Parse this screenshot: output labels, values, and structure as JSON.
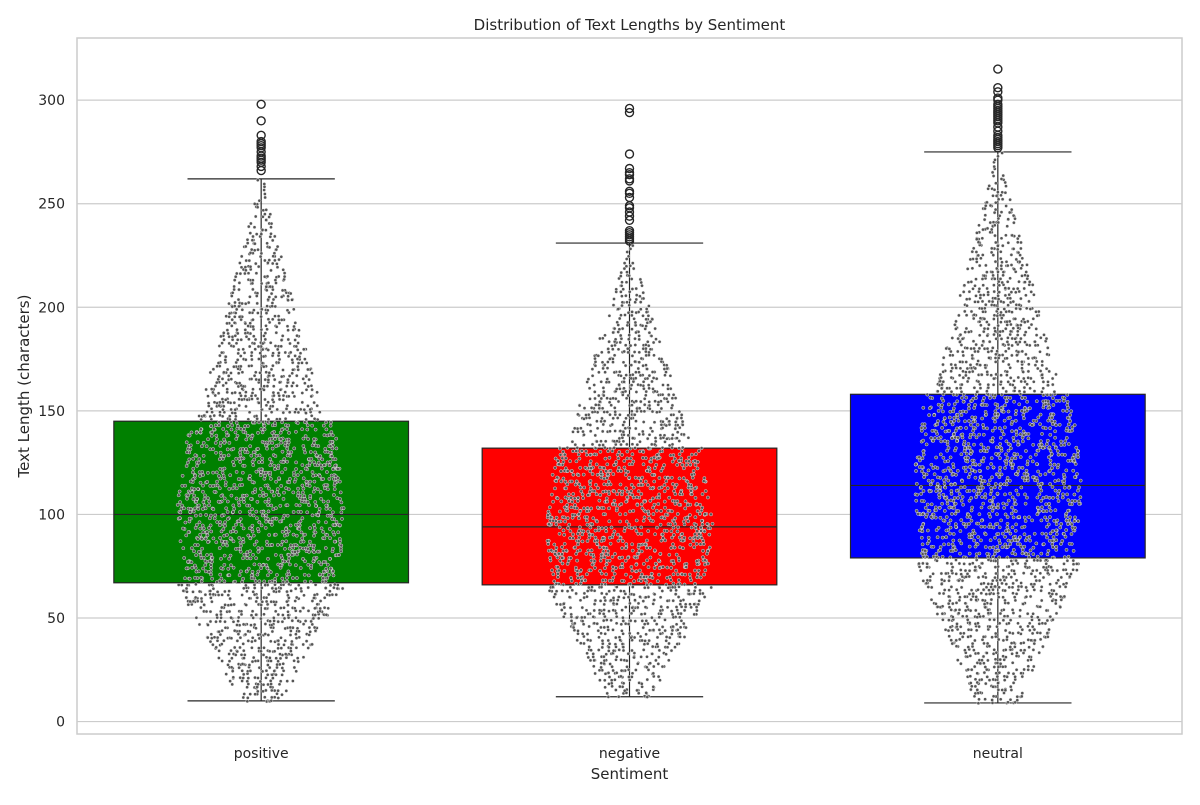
{
  "chart_data": {
    "type": "box",
    "title": "Distribution of Text Lengths by Sentiment",
    "xlabel": "Sentiment",
    "ylabel": "Text Length (characters)",
    "ylim": [
      -6,
      330
    ],
    "yticks": [
      0,
      50,
      100,
      150,
      200,
      250,
      300
    ],
    "ytick_labels": [
      "0",
      "50",
      "100",
      "150",
      "200",
      "250",
      "300"
    ],
    "grid": "horizontal",
    "overlay": "swarm",
    "categories": [
      "positive",
      "negative",
      "neutral"
    ],
    "boxes": [
      {
        "category": "positive",
        "color": "#008000",
        "whisker_low": 10,
        "q1": 67,
        "median": 100,
        "q3": 145,
        "whisker_high": 262,
        "outliers": [
          266,
          268,
          270,
          271,
          272,
          273,
          275,
          277,
          278,
          279,
          280,
          283,
          290,
          298
        ]
      },
      {
        "category": "negative",
        "color": "#ff0000",
        "whisker_low": 12,
        "q1": 66,
        "median": 94,
        "q3": 132,
        "whisker_high": 231,
        "outliers": [
          232,
          233,
          234,
          235,
          236,
          237,
          242,
          244,
          246,
          248,
          249,
          253,
          255,
          256,
          261,
          262,
          264,
          265,
          267,
          274,
          294,
          296
        ]
      },
      {
        "category": "neutral",
        "color": "#0000ff",
        "whisker_low": 9,
        "q1": 79,
        "median": 114,
        "q3": 158,
        "whisker_high": 275,
        "outliers": [
          277,
          278,
          279,
          280,
          281,
          282,
          283,
          285,
          287,
          289,
          290,
          291,
          292,
          293,
          294,
          295,
          296,
          297,
          298,
          300,
          301,
          304,
          306,
          315
        ]
      }
    ]
  }
}
